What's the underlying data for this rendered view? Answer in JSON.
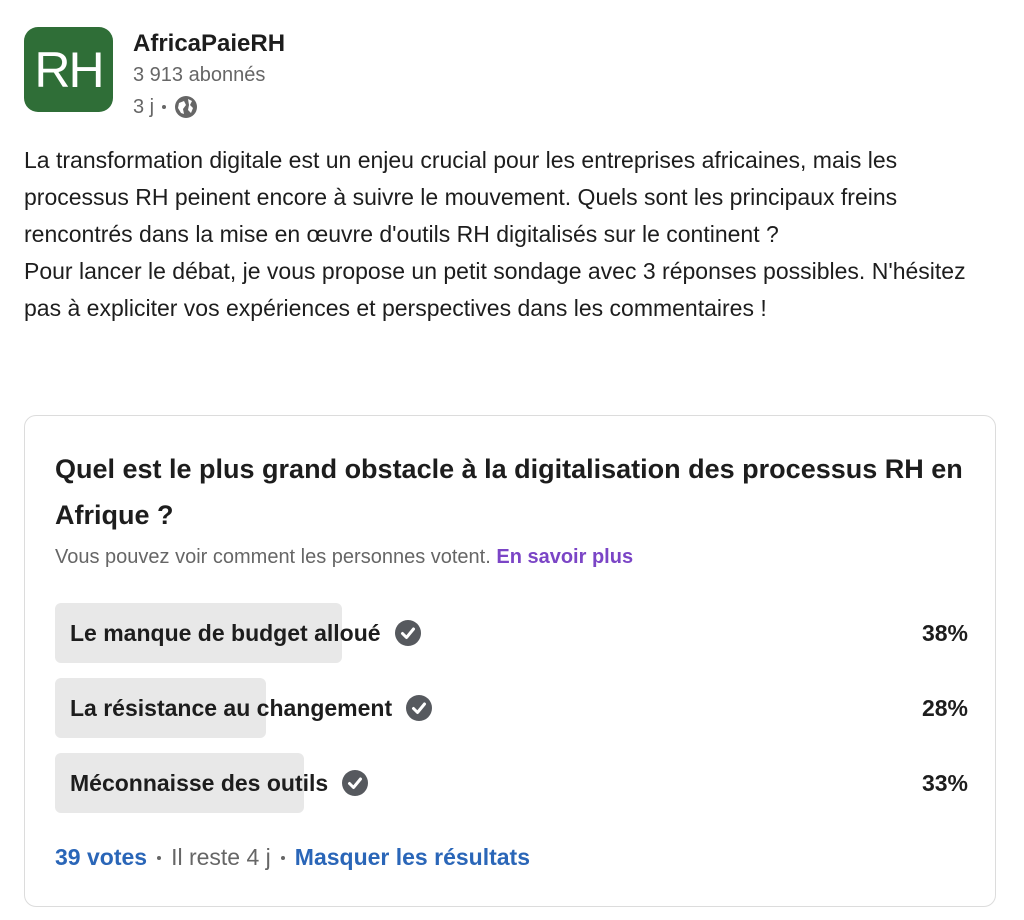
{
  "author": {
    "name": "AfricaPaieRH",
    "logo_text": "RH",
    "followers": "3 913 abonnés",
    "time": "3 j"
  },
  "post": {
    "paragraphs": [
      "La transformation digitale est un enjeu crucial pour les entreprises africaines, mais les processus RH peinent encore à suivre le mouvement. Quels sont les principaux freins rencontrés dans la mise en œuvre d'outils RH digitalisés sur le continent ?",
      "Pour lancer le débat, je vous propose un petit sondage avec 3 réponses possibles. N'hésitez pas à expliciter vos expériences et perspectives dans les commentaires !"
    ]
  },
  "poll": {
    "question": "Quel est le plus grand obstacle à la digitalisation des processus RH en Afrique ?",
    "note": "Vous pouvez voir comment les personnes votent.",
    "note_link": "En savoir plus",
    "options": [
      {
        "label": "Le manque de budget alloué",
        "value": 38,
        "value_label": "38%"
      },
      {
        "label": "La résistance au changement",
        "value": 28,
        "value_label": "28%"
      },
      {
        "label": "Méconnaisse des outils",
        "value": 33,
        "value_label": "33%"
      }
    ],
    "votes": "39 votes",
    "remaining": "Il reste 4 j",
    "hide_results": "Masquer les résultats"
  }
}
